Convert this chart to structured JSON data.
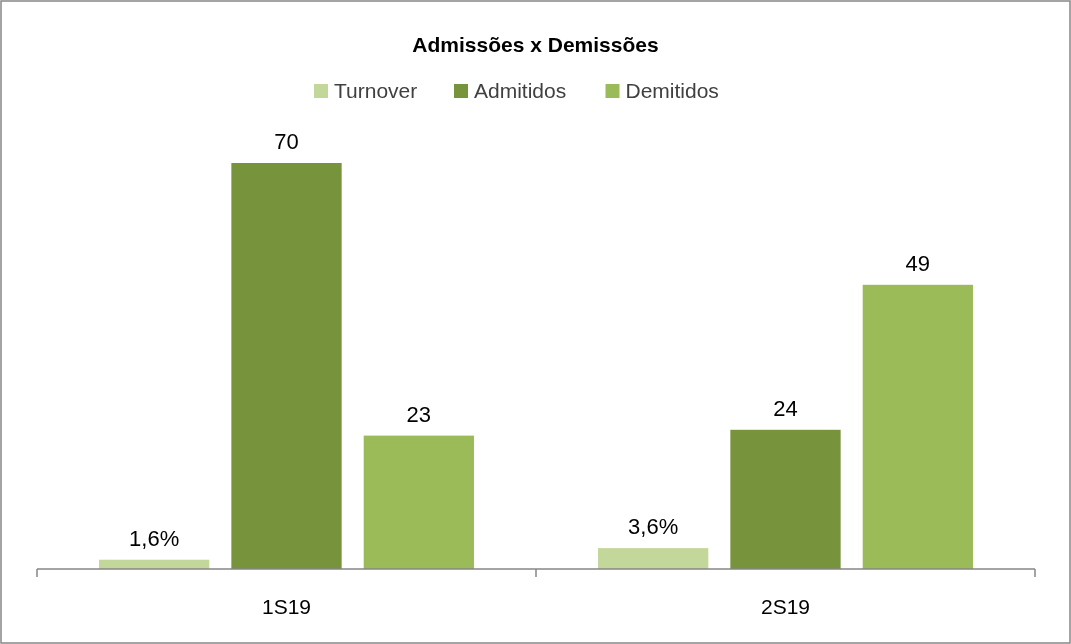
{
  "chart_data": {
    "type": "bar",
    "title": "Admissões x Demissões",
    "categories": [
      "1S19",
      "2S19"
    ],
    "tick_labels": "x",
    "legend": "top",
    "data_labels": true,
    "series": [
      {
        "name": "Turnover",
        "color": "#c4d79b",
        "values": [
          1.6,
          3.6
        ],
        "value_labels": [
          "1,6%",
          "3,6%"
        ]
      },
      {
        "name": "Admitidos",
        "color": "#77933c",
        "values": [
          70,
          24
        ]
      },
      {
        "name": "Demitidos",
        "color": "#9bbb59",
        "values": [
          23,
          49
        ]
      }
    ]
  }
}
